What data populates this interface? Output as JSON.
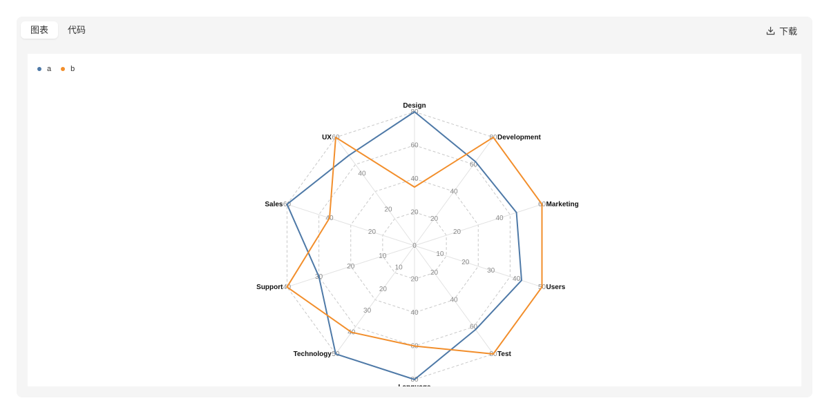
{
  "toolbar": {
    "tabs": [
      {
        "label": "图表",
        "active": true
      },
      {
        "label": "代码",
        "active": false
      }
    ],
    "download_label": "下载",
    "download_icon": "download-icon"
  },
  "legend": [
    {
      "label": "a",
      "color": "#4e79a7"
    },
    {
      "label": "b",
      "color": "#f28e2b"
    }
  ],
  "chart_data": {
    "type": "radar",
    "title": "",
    "axes": [
      "Design",
      "Development",
      "Marketing",
      "Users",
      "Test",
      "Language",
      "Technology",
      "Support",
      "Sales",
      "UX"
    ],
    "axis_ticks": [
      [
        "0",
        "20",
        "40",
        "60",
        "80"
      ],
      [
        "0",
        "20",
        "40",
        "60",
        "80"
      ],
      [
        "0",
        "20",
        "40",
        "60"
      ],
      [
        "0",
        "10",
        "20",
        "30",
        "40",
        "50"
      ],
      [
        "0",
        "20",
        "40",
        "60",
        "80"
      ],
      [
        "0",
        "20",
        "40",
        "60",
        "80"
      ],
      [
        "0",
        "10",
        "20",
        "30",
        "40",
        "50"
      ],
      [
        "0",
        "10",
        "20",
        "30",
        "40"
      ],
      [
        "0",
        "20",
        "40",
        "60"
      ],
      [
        "0",
        "20",
        "40",
        "60"
      ]
    ],
    "axis_max": [
      80,
      80,
      60,
      50,
      80,
      80,
      50,
      40,
      60,
      60
    ],
    "series": [
      {
        "name": "a",
        "color": "#4e79a7",
        "values": [
          80,
          62,
          48,
          42,
          62,
          80,
          50,
          30,
          60,
          50
        ]
      },
      {
        "name": "b",
        "color": "#f28e2b",
        "values": [
          35,
          80,
          60,
          50,
          80,
          60,
          40,
          40,
          40,
          60
        ]
      }
    ],
    "grid": true,
    "legend_position": "top-left"
  }
}
